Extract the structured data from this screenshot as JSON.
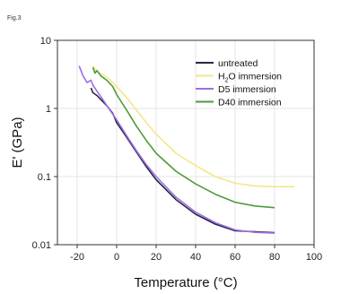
{
  "figure_label": "Fig.3",
  "chart_data": {
    "type": "line",
    "xlabel": "Temperature (°C)",
    "ylabel": "E' (GPa)",
    "xlim": [
      -30,
      100
    ],
    "ylim": [
      0.01,
      10
    ],
    "y_scale": "log",
    "grid": true,
    "legend_position": "top-right",
    "x_ticks": [
      -20,
      0,
      20,
      40,
      60,
      80,
      100
    ],
    "x_tick_labels": [
      "-20",
      "0",
      "20",
      "40",
      "60",
      "80",
      "100"
    ],
    "y_ticks": [
      0.01,
      0.1,
      1,
      10
    ],
    "y_tick_labels": [
      "0.01",
      "0.1",
      "1",
      "10"
    ],
    "series": [
      {
        "name": "untreated",
        "legend": {
          "main": "untreated",
          "sub": "",
          "rest": ""
        },
        "color": "#2a2545",
        "points": [
          [
            -13,
            2.0
          ],
          [
            -12,
            1.7
          ],
          [
            -10,
            1.55
          ],
          [
            -8,
            1.35
          ],
          [
            -5,
            1.1
          ],
          [
            -2,
            0.85
          ],
          [
            0,
            0.62
          ],
          [
            5,
            0.38
          ],
          [
            10,
            0.23
          ],
          [
            15,
            0.14
          ],
          [
            20,
            0.09
          ],
          [
            30,
            0.046
          ],
          [
            40,
            0.028
          ],
          [
            50,
            0.02
          ],
          [
            60,
            0.016
          ],
          [
            70,
            0.0155
          ],
          [
            80,
            0.015
          ]
        ]
      },
      {
        "name": "H2O immersion",
        "legend": {
          "main": "H",
          "sub": "2",
          "rest": "O immersion"
        },
        "color": "#f2e78a",
        "points": [
          [
            -12,
            4.2
          ],
          [
            -10,
            3.5
          ],
          [
            -5,
            2.9
          ],
          [
            0,
            2.1
          ],
          [
            5,
            1.45
          ],
          [
            10,
            0.95
          ],
          [
            15,
            0.62
          ],
          [
            20,
            0.42
          ],
          [
            30,
            0.22
          ],
          [
            40,
            0.145
          ],
          [
            50,
            0.1
          ],
          [
            60,
            0.08
          ],
          [
            70,
            0.073
          ],
          [
            80,
            0.071
          ],
          [
            90,
            0.071
          ]
        ]
      },
      {
        "name": "D5 immersion",
        "legend": {
          "main": "D5 immersion",
          "sub": "",
          "rest": ""
        },
        "color": "#9b6fe0",
        "points": [
          [
            -19,
            4.2
          ],
          [
            -17,
            3.0
          ],
          [
            -15,
            2.4
          ],
          [
            -13,
            2.6
          ],
          [
            -12,
            2.2
          ],
          [
            -10,
            1.8
          ],
          [
            -7,
            1.35
          ],
          [
            -4,
            1.0
          ],
          [
            0,
            0.68
          ],
          [
            5,
            0.4
          ],
          [
            10,
            0.24
          ],
          [
            15,
            0.15
          ],
          [
            20,
            0.1
          ],
          [
            30,
            0.05
          ],
          [
            40,
            0.03
          ],
          [
            50,
            0.021
          ],
          [
            60,
            0.0165
          ],
          [
            70,
            0.0152
          ],
          [
            80,
            0.0148
          ]
        ]
      },
      {
        "name": "D40 immersion",
        "legend": {
          "main": "D40 immersion",
          "sub": "",
          "rest": ""
        },
        "color": "#4f9a3a",
        "points": [
          [
            -12,
            4.0
          ],
          [
            -11,
            3.3
          ],
          [
            -10,
            3.6
          ],
          [
            -8,
            3.0
          ],
          [
            -5,
            2.6
          ],
          [
            -2,
            2.1
          ],
          [
            0,
            1.6
          ],
          [
            5,
            0.95
          ],
          [
            10,
            0.55
          ],
          [
            15,
            0.34
          ],
          [
            20,
            0.22
          ],
          [
            30,
            0.12
          ],
          [
            40,
            0.078
          ],
          [
            50,
            0.055
          ],
          [
            60,
            0.042
          ],
          [
            70,
            0.037
          ],
          [
            80,
            0.035
          ]
        ]
      }
    ]
  }
}
